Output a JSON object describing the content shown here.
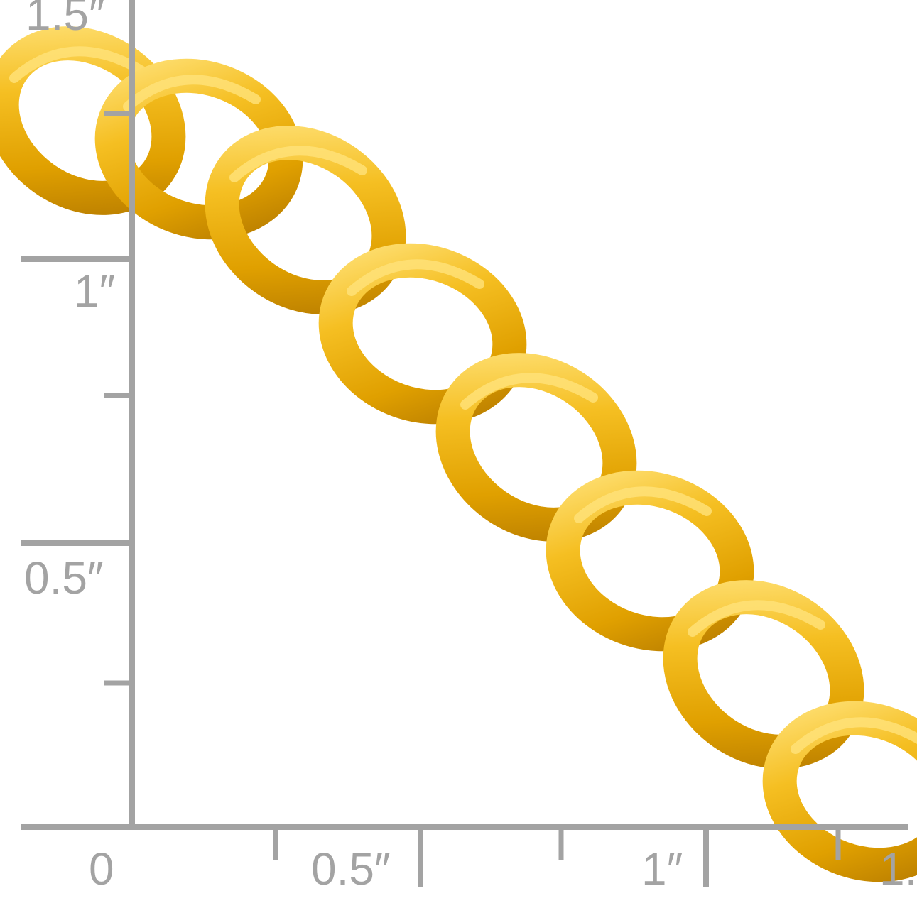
{
  "ruler": {
    "color": "#a3a3a3",
    "vertical_labels": [
      "1.5″",
      "1″",
      "0.5″"
    ],
    "horizontal_labels": [
      "0",
      "0.5″",
      "1″",
      "1."
    ]
  },
  "photo": {
    "subject": "gold-curb-chain",
    "gold_color": "#f2b31a",
    "highlight_color": "#ffe27a",
    "shadow_color": "#b57a00"
  }
}
